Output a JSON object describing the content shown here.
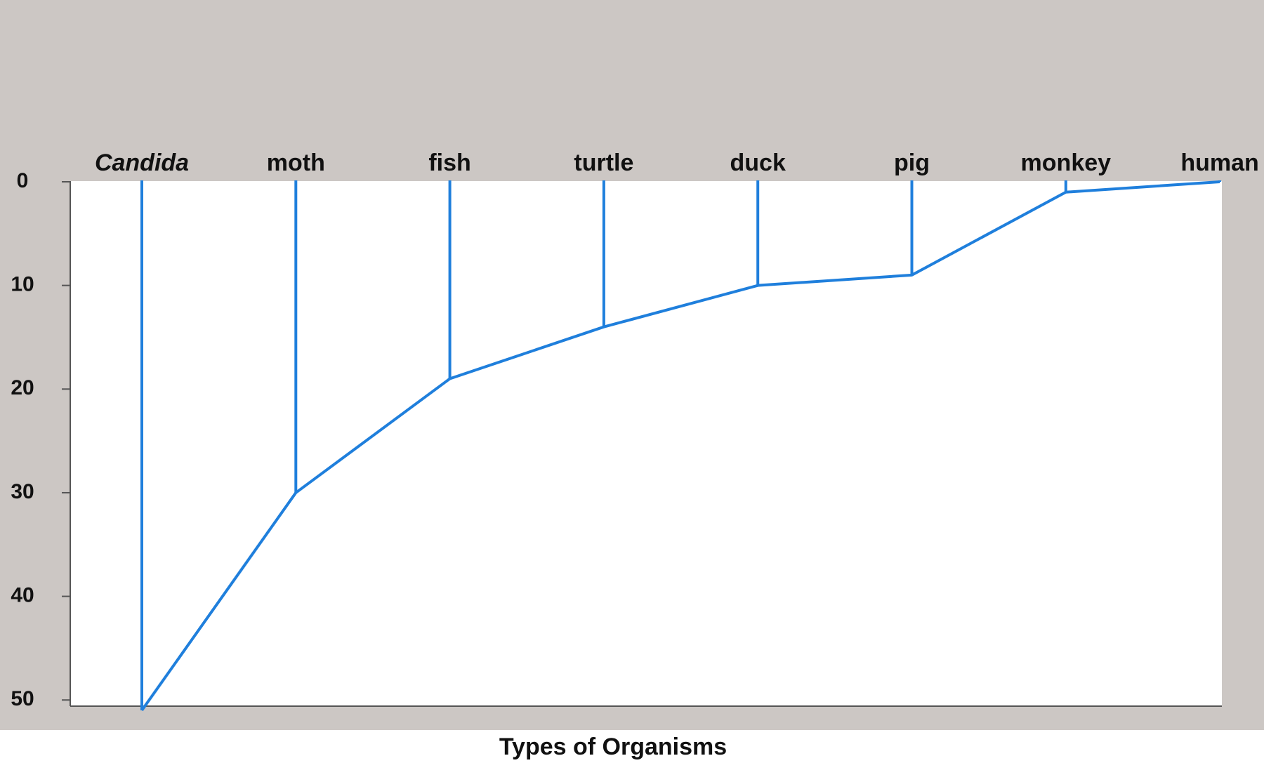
{
  "chart_data": {
    "type": "line",
    "x_label": "Types of Organisms",
    "categories": [
      "Candida",
      "moth",
      "fish",
      "turtle",
      "duck",
      "pig",
      "monkey",
      "human"
    ],
    "values": [
      51,
      30,
      19,
      14,
      10,
      9,
      1,
      0
    ],
    "color": "#1f7fdc",
    "ylim": [
      0,
      51
    ],
    "yticks": [
      0,
      10,
      20,
      30,
      40,
      50
    ],
    "y_inverted": true,
    "italic_categories": [
      "Candida"
    ]
  }
}
